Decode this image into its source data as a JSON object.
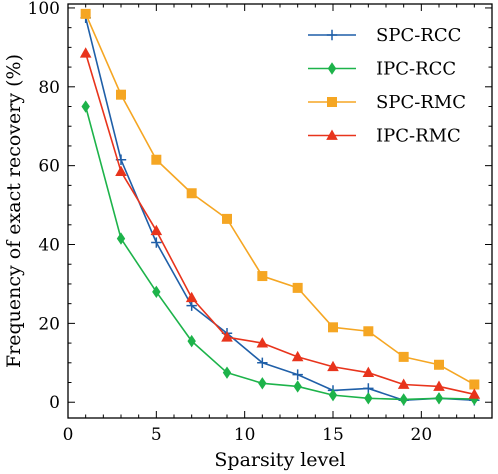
{
  "chart_data": {
    "type": "line",
    "xlabel": "Sparsity level",
    "ylabel": "Frequency of exact recovery (%)",
    "xlim": [
      0,
      24
    ],
    "ylim": [
      -4,
      101
    ],
    "xticks": [
      0,
      5,
      10,
      15,
      20
    ],
    "yticks": [
      0,
      20,
      40,
      60,
      80,
      100
    ],
    "x_minor_step": 1,
    "y_minor_step": 5,
    "grid": false,
    "legend_position": "top-right",
    "x": [
      1,
      3,
      5,
      7,
      9,
      11,
      13,
      15,
      17,
      19,
      21,
      23
    ],
    "series": [
      {
        "name": "SPC-RCC",
        "marker": "plus",
        "color": "#1f5fa8",
        "values": [
          97.5,
          61.5,
          40.5,
          24.5,
          17.5,
          10,
          7,
          3,
          3.5,
          0.5,
          1,
          0.5
        ]
      },
      {
        "name": "IPC-RCC",
        "marker": "diamond",
        "color": "#1db34a",
        "values": [
          75,
          41.5,
          28,
          15.5,
          7.5,
          4.8,
          4,
          1.8,
          1,
          0.7,
          1,
          0.8
        ]
      },
      {
        "name": "SPC-RMC",
        "marker": "square",
        "color": "#f5a623",
        "values": [
          98.5,
          78,
          61.5,
          53,
          46.5,
          32,
          29,
          19,
          18,
          11.5,
          9.5,
          4.5
        ]
      },
      {
        "name": "IPC-RMC",
        "marker": "triangle",
        "color": "#e8341c",
        "values": [
          88.5,
          58.5,
          43.5,
          26.5,
          16.5,
          15,
          11.5,
          9,
          7.5,
          4.5,
          4,
          2
        ]
      }
    ]
  }
}
